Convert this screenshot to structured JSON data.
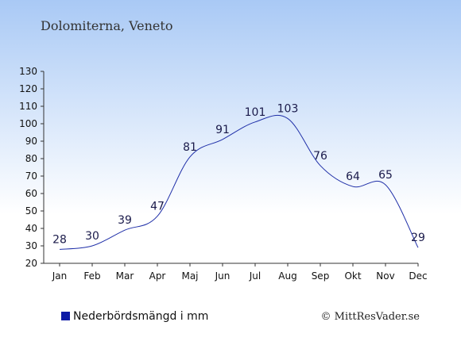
{
  "chart_data": {
    "type": "line",
    "title": "Dolomiterna, Veneto",
    "categories": [
      "Jan",
      "Feb",
      "Mar",
      "Apr",
      "Maj",
      "Jun",
      "Jul",
      "Aug",
      "Sep",
      "Okt",
      "Nov",
      "Dec"
    ],
    "series": [
      {
        "name": "Nederbördsmängd i mm",
        "values": [
          28,
          30,
          39,
          47,
          81,
          91,
          101,
          103,
          76,
          64,
          65,
          29
        ],
        "color": "#1f2fa8"
      }
    ],
    "ylim": [
      20,
      130
    ],
    "yticks": [
      20,
      30,
      40,
      50,
      60,
      70,
      80,
      90,
      100,
      110,
      120,
      130
    ],
    "grid": false,
    "legend_position": "bottom-left",
    "legend_color": "#0c1aa6"
  },
  "credit": "© MittResVader.se"
}
